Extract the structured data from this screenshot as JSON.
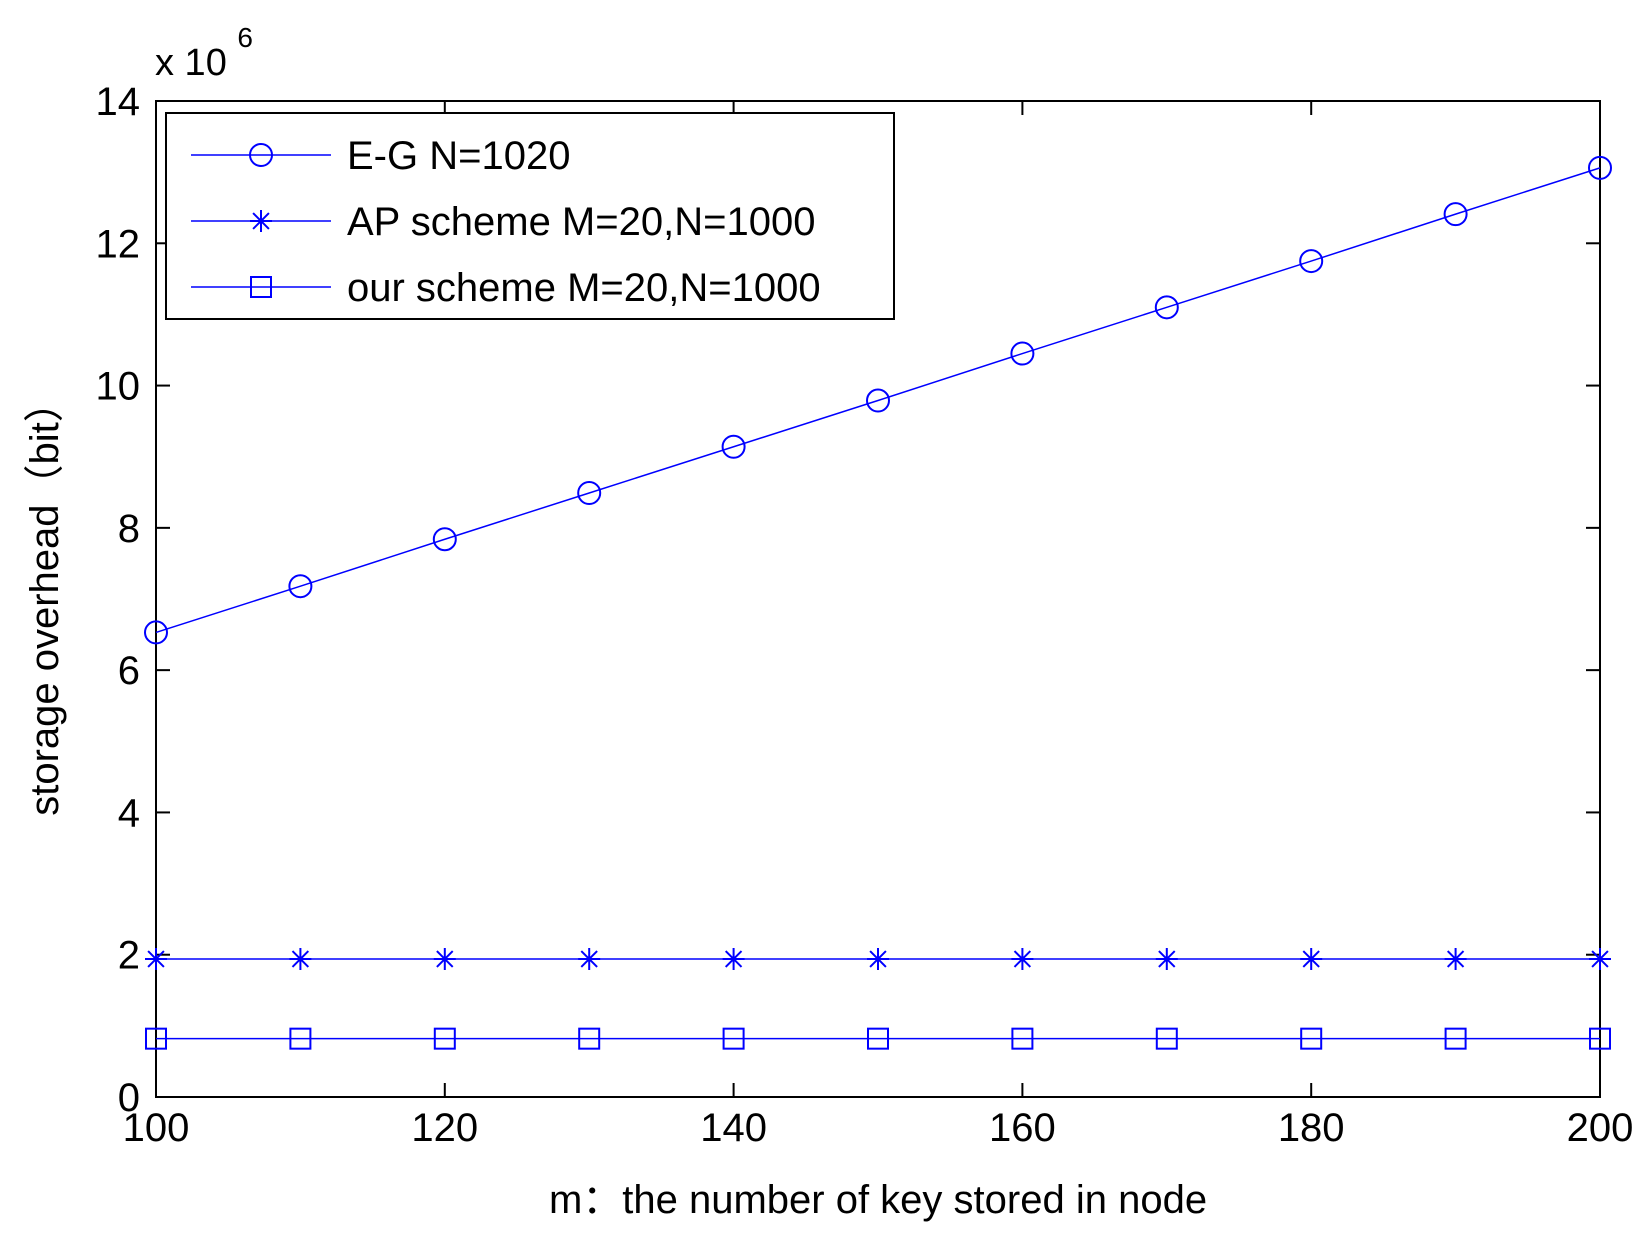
{
  "chart_data": {
    "type": "line",
    "title": "",
    "xlabel": "m：the number of key stored in node",
    "ylabel": "storage overhead（bit）",
    "x": [
      100,
      110,
      120,
      130,
      140,
      150,
      160,
      170,
      180,
      190,
      200
    ],
    "xlim": [
      100,
      200
    ],
    "ylim": [
      0,
      14
    ],
    "xticks": [
      100,
      120,
      140,
      160,
      180,
      200
    ],
    "yticks": [
      0,
      2,
      4,
      6,
      8,
      10,
      12,
      14
    ],
    "y_exponent_base": "x 10",
    "y_exponent_power": "6",
    "grid": false,
    "legend_location": "top-left",
    "line_color": "#0000ff",
    "series": [
      {
        "name": "E-G N=1020",
        "marker": "circle",
        "values": [
          6.53,
          7.18,
          7.84,
          8.49,
          9.14,
          9.79,
          10.45,
          11.1,
          11.75,
          12.41,
          13.06
        ]
      },
      {
        "name": "AP scheme M=20,N=1000",
        "marker": "star",
        "values": [
          1.94,
          1.94,
          1.94,
          1.94,
          1.94,
          1.94,
          1.94,
          1.94,
          1.94,
          1.94,
          1.94
        ]
      },
      {
        "name": "our scheme M=20,N=1000",
        "marker": "square",
        "values": [
          0.82,
          0.82,
          0.82,
          0.82,
          0.82,
          0.82,
          0.82,
          0.82,
          0.82,
          0.82,
          0.82
        ]
      }
    ]
  }
}
